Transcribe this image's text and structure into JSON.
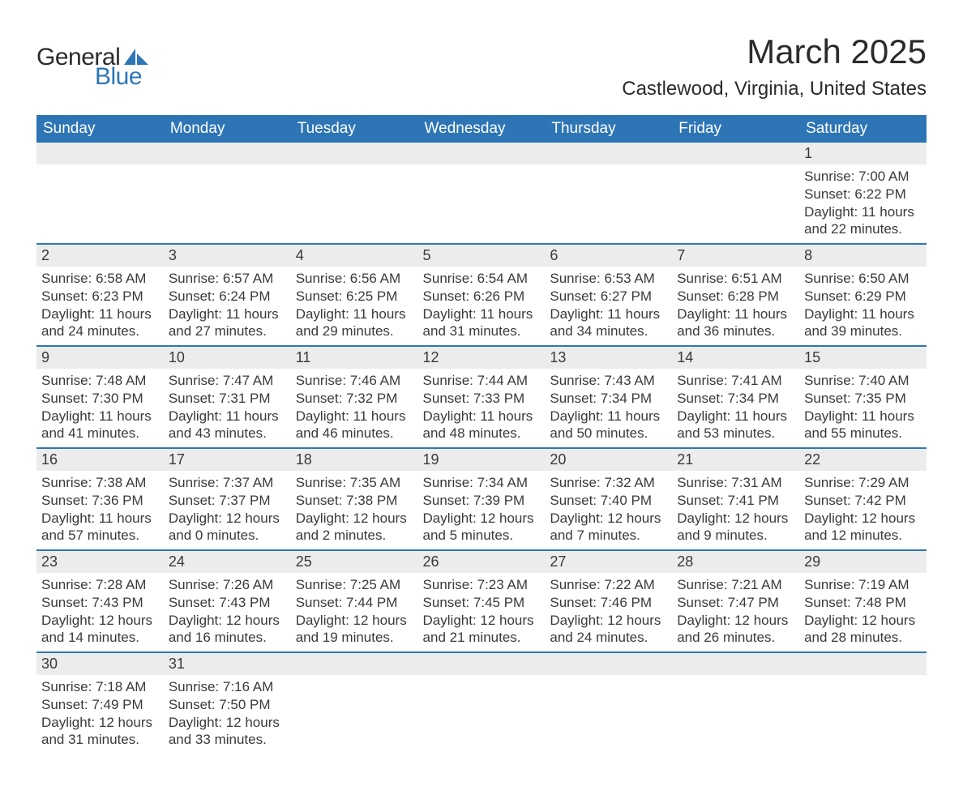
{
  "logo": {
    "text1": "General",
    "text2": "Blue",
    "shape_color": "#2e75b6"
  },
  "title": "March 2025",
  "location": "Castlewood, Virginia, United States",
  "colors": {
    "header_bg": "#2e75b6",
    "header_fg": "#ffffff",
    "daynum_bg": "#ececec",
    "row_border": "#2e75b6",
    "text": "#3a3a3a",
    "page_bg": "#ffffff"
  },
  "typography": {
    "title_fontsize": 42,
    "location_fontsize": 24,
    "header_fontsize": 19,
    "cell_fontsize": 17,
    "logo_fontsize": 30
  },
  "weekdays": [
    "Sunday",
    "Monday",
    "Tuesday",
    "Wednesday",
    "Thursday",
    "Friday",
    "Saturday"
  ],
  "weeks": [
    [
      null,
      null,
      null,
      null,
      null,
      null,
      {
        "n": "1",
        "sr": "Sunrise: 7:00 AM",
        "ss": "Sunset: 6:22 PM",
        "dl": "Daylight: 11 hours and 22 minutes."
      }
    ],
    [
      {
        "n": "2",
        "sr": "Sunrise: 6:58 AM",
        "ss": "Sunset: 6:23 PM",
        "dl": "Daylight: 11 hours and 24 minutes."
      },
      {
        "n": "3",
        "sr": "Sunrise: 6:57 AM",
        "ss": "Sunset: 6:24 PM",
        "dl": "Daylight: 11 hours and 27 minutes."
      },
      {
        "n": "4",
        "sr": "Sunrise: 6:56 AM",
        "ss": "Sunset: 6:25 PM",
        "dl": "Daylight: 11 hours and 29 minutes."
      },
      {
        "n": "5",
        "sr": "Sunrise: 6:54 AM",
        "ss": "Sunset: 6:26 PM",
        "dl": "Daylight: 11 hours and 31 minutes."
      },
      {
        "n": "6",
        "sr": "Sunrise: 6:53 AM",
        "ss": "Sunset: 6:27 PM",
        "dl": "Daylight: 11 hours and 34 minutes."
      },
      {
        "n": "7",
        "sr": "Sunrise: 6:51 AM",
        "ss": "Sunset: 6:28 PM",
        "dl": "Daylight: 11 hours and 36 minutes."
      },
      {
        "n": "8",
        "sr": "Sunrise: 6:50 AM",
        "ss": "Sunset: 6:29 PM",
        "dl": "Daylight: 11 hours and 39 minutes."
      }
    ],
    [
      {
        "n": "9",
        "sr": "Sunrise: 7:48 AM",
        "ss": "Sunset: 7:30 PM",
        "dl": "Daylight: 11 hours and 41 minutes."
      },
      {
        "n": "10",
        "sr": "Sunrise: 7:47 AM",
        "ss": "Sunset: 7:31 PM",
        "dl": "Daylight: 11 hours and 43 minutes."
      },
      {
        "n": "11",
        "sr": "Sunrise: 7:46 AM",
        "ss": "Sunset: 7:32 PM",
        "dl": "Daylight: 11 hours and 46 minutes."
      },
      {
        "n": "12",
        "sr": "Sunrise: 7:44 AM",
        "ss": "Sunset: 7:33 PM",
        "dl": "Daylight: 11 hours and 48 minutes."
      },
      {
        "n": "13",
        "sr": "Sunrise: 7:43 AM",
        "ss": "Sunset: 7:34 PM",
        "dl": "Daylight: 11 hours and 50 minutes."
      },
      {
        "n": "14",
        "sr": "Sunrise: 7:41 AM",
        "ss": "Sunset: 7:34 PM",
        "dl": "Daylight: 11 hours and 53 minutes."
      },
      {
        "n": "15",
        "sr": "Sunrise: 7:40 AM",
        "ss": "Sunset: 7:35 PM",
        "dl": "Daylight: 11 hours and 55 minutes."
      }
    ],
    [
      {
        "n": "16",
        "sr": "Sunrise: 7:38 AM",
        "ss": "Sunset: 7:36 PM",
        "dl": "Daylight: 11 hours and 57 minutes."
      },
      {
        "n": "17",
        "sr": "Sunrise: 7:37 AM",
        "ss": "Sunset: 7:37 PM",
        "dl": "Daylight: 12 hours and 0 minutes."
      },
      {
        "n": "18",
        "sr": "Sunrise: 7:35 AM",
        "ss": "Sunset: 7:38 PM",
        "dl": "Daylight: 12 hours and 2 minutes."
      },
      {
        "n": "19",
        "sr": "Sunrise: 7:34 AM",
        "ss": "Sunset: 7:39 PM",
        "dl": "Daylight: 12 hours and 5 minutes."
      },
      {
        "n": "20",
        "sr": "Sunrise: 7:32 AM",
        "ss": "Sunset: 7:40 PM",
        "dl": "Daylight: 12 hours and 7 minutes."
      },
      {
        "n": "21",
        "sr": "Sunrise: 7:31 AM",
        "ss": "Sunset: 7:41 PM",
        "dl": "Daylight: 12 hours and 9 minutes."
      },
      {
        "n": "22",
        "sr": "Sunrise: 7:29 AM",
        "ss": "Sunset: 7:42 PM",
        "dl": "Daylight: 12 hours and 12 minutes."
      }
    ],
    [
      {
        "n": "23",
        "sr": "Sunrise: 7:28 AM",
        "ss": "Sunset: 7:43 PM",
        "dl": "Daylight: 12 hours and 14 minutes."
      },
      {
        "n": "24",
        "sr": "Sunrise: 7:26 AM",
        "ss": "Sunset: 7:43 PM",
        "dl": "Daylight: 12 hours and 16 minutes."
      },
      {
        "n": "25",
        "sr": "Sunrise: 7:25 AM",
        "ss": "Sunset: 7:44 PM",
        "dl": "Daylight: 12 hours and 19 minutes."
      },
      {
        "n": "26",
        "sr": "Sunrise: 7:23 AM",
        "ss": "Sunset: 7:45 PM",
        "dl": "Daylight: 12 hours and 21 minutes."
      },
      {
        "n": "27",
        "sr": "Sunrise: 7:22 AM",
        "ss": "Sunset: 7:46 PM",
        "dl": "Daylight: 12 hours and 24 minutes."
      },
      {
        "n": "28",
        "sr": "Sunrise: 7:21 AM",
        "ss": "Sunset: 7:47 PM",
        "dl": "Daylight: 12 hours and 26 minutes."
      },
      {
        "n": "29",
        "sr": "Sunrise: 7:19 AM",
        "ss": "Sunset: 7:48 PM",
        "dl": "Daylight: 12 hours and 28 minutes."
      }
    ],
    [
      {
        "n": "30",
        "sr": "Sunrise: 7:18 AM",
        "ss": "Sunset: 7:49 PM",
        "dl": "Daylight: 12 hours and 31 minutes."
      },
      {
        "n": "31",
        "sr": "Sunrise: 7:16 AM",
        "ss": "Sunset: 7:50 PM",
        "dl": "Daylight: 12 hours and 33 minutes."
      },
      null,
      null,
      null,
      null,
      null
    ]
  ]
}
